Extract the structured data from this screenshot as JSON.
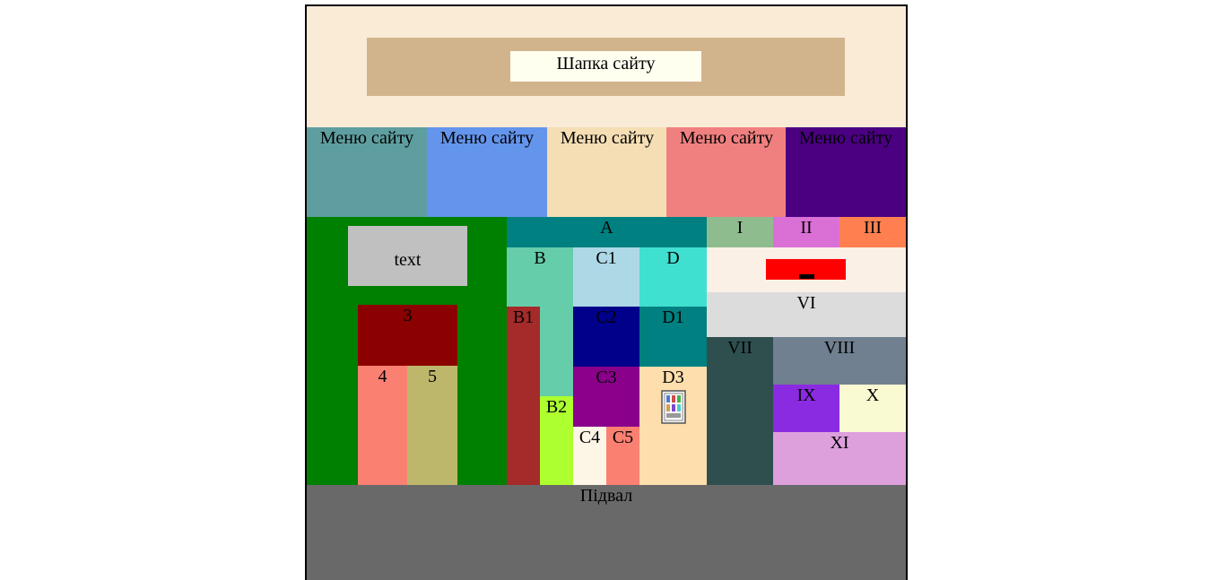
{
  "header": {
    "title": "Шапка сайту"
  },
  "menu": [
    {
      "label": "Меню сайту",
      "color": "#5F9EA0"
    },
    {
      "label": "Меню сайту",
      "color": "#6495ED"
    },
    {
      "label": "Меню сайту",
      "color": "#F5DEB3"
    },
    {
      "label": "Меню сайту",
      "color": "#F08080"
    },
    {
      "label": "Меню сайту",
      "color": "#4B0082"
    }
  ],
  "left_panel": {
    "text_box": "text",
    "block3": "3",
    "block4": "4",
    "block5": "5"
  },
  "middle_panel": {
    "A": "A",
    "B": "B",
    "C1": "C1",
    "D": "D",
    "B1": "B1",
    "C2": "C2",
    "D1": "D1",
    "B2": "B2",
    "C3": "C3",
    "D3": "D3",
    "C4": "C4",
    "C5": "C5"
  },
  "right_panel": {
    "I": "I",
    "II": "II",
    "III": "III",
    "VI": "VI",
    "VII": "VII",
    "VIII": "VIII",
    "IX": "IX",
    "X": "X",
    "XI": "XI"
  },
  "footer": {
    "label": "Підвал"
  }
}
